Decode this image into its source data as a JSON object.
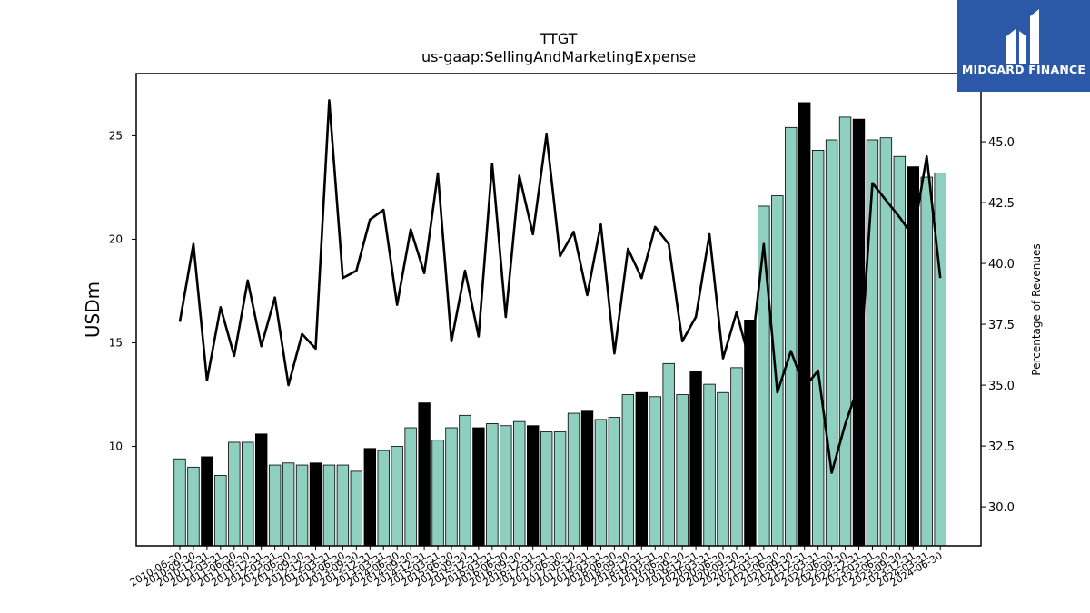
{
  "logo": {
    "text": "MIDGARD FINANCE",
    "bg": "#2b59a8"
  },
  "colors": {
    "bar_teal": "#8ecfc0",
    "bar_black": "#000000",
    "line": "#000000"
  },
  "chart_data": {
    "type": "bar+line",
    "title": "TTGT",
    "subtitle": "us-gaap:SellingAndMarketingExpense",
    "ylabel": "USDm",
    "y2label": "Percentage of Revenues",
    "ylim": [
      5.2,
      28.0
    ],
    "y2lim": [
      28.4,
      47.8
    ],
    "yticks": [
      "10",
      "15",
      "20",
      "25"
    ],
    "y2ticks": [
      "30.0",
      "32.5",
      "35.0",
      "37.5",
      "40.0",
      "42.5",
      "45.0"
    ],
    "categories": [
      "2010-06-30",
      "2010-09-30",
      "2010-12-31",
      "2011-03-31",
      "2011-06-30",
      "2011-09-30",
      "2011-12-31",
      "2012-03-31",
      "2012-06-30",
      "2012-09-30",
      "2012-12-31",
      "2013-03-31",
      "2013-06-30",
      "2013-09-30",
      "2013-12-31",
      "2014-03-31",
      "2014-06-30",
      "2014-09-30",
      "2014-12-31",
      "2015-03-31",
      "2015-06-30",
      "2015-09-30",
      "2015-12-31",
      "2016-03-31",
      "2016-06-30",
      "2016-09-30",
      "2016-12-31",
      "2017-03-31",
      "2017-06-30",
      "2017-09-30",
      "2017-12-31",
      "2018-03-31",
      "2018-06-30",
      "2018-09-30",
      "2018-12-31",
      "2019-03-31",
      "2019-06-30",
      "2019-09-30",
      "2019-12-31",
      "2020-03-31",
      "2020-06-30",
      "2020-09-30",
      "2020-12-31",
      "2021-03-31",
      "2021-06-30",
      "2021-09-30",
      "2021-12-31",
      "2022-03-31",
      "2022-06-30",
      "2022-09-30",
      "2022-12-31",
      "2023-03-31",
      "2023-06-30",
      "2023-09-30",
      "2023-12-31",
      "2024-03-31",
      "2024-06-30"
    ],
    "series": [
      {
        "kind": "bar",
        "values": [
          9.4,
          9.0,
          9.5,
          8.6,
          10.2,
          10.2,
          10.6,
          9.1,
          9.2,
          9.1,
          9.2,
          9.1,
          9.1,
          8.8,
          9.9,
          9.8,
          10.0,
          10.9,
          12.1,
          10.3,
          10.9,
          11.5,
          10.9,
          11.1,
          11.0,
          11.2,
          11.0,
          10.7,
          10.7,
          11.6,
          11.7,
          11.3,
          11.4,
          12.5,
          12.6,
          12.4,
          14.0,
          12.5,
          13.6,
          13.0,
          12.6,
          13.8,
          16.1,
          21.6,
          22.1,
          25.4,
          26.6,
          24.3,
          24.8,
          25.9,
          25.8,
          24.8,
          24.9,
          24.0,
          23.5,
          23.0,
          23.2
        ],
        "highlight": [
          false,
          false,
          true,
          false,
          false,
          false,
          true,
          false,
          false,
          false,
          true,
          false,
          false,
          false,
          true,
          false,
          false,
          false,
          true,
          false,
          false,
          false,
          true,
          false,
          false,
          false,
          true,
          false,
          false,
          false,
          true,
          false,
          false,
          false,
          true,
          false,
          false,
          false,
          true,
          false,
          false,
          false,
          true,
          false,
          false,
          false,
          true,
          false,
          false,
          false,
          true,
          false,
          false,
          false,
          true,
          false,
          false
        ]
      },
      {
        "kind": "line",
        "axis": "right",
        "values": [
          37.6,
          40.8,
          35.2,
          38.2,
          36.2,
          39.3,
          36.6,
          38.6,
          35.0,
          37.1,
          36.5,
          46.7,
          39.4,
          39.7,
          41.8,
          42.2,
          38.3,
          41.4,
          39.6,
          43.7,
          36.8,
          39.7,
          37.0,
          44.1,
          37.8,
          43.6,
          41.2,
          45.3,
          40.3,
          41.3,
          38.7,
          41.6,
          36.3,
          40.6,
          39.4,
          41.5,
          40.8,
          36.8,
          37.8,
          41.2,
          36.1,
          38.0,
          35.9,
          40.8,
          34.7,
          36.4,
          34.9,
          35.6,
          31.4,
          33.4,
          35.0,
          43.3,
          42.6,
          41.9,
          41.1,
          44.4,
          39.4
        ]
      }
    ]
  }
}
